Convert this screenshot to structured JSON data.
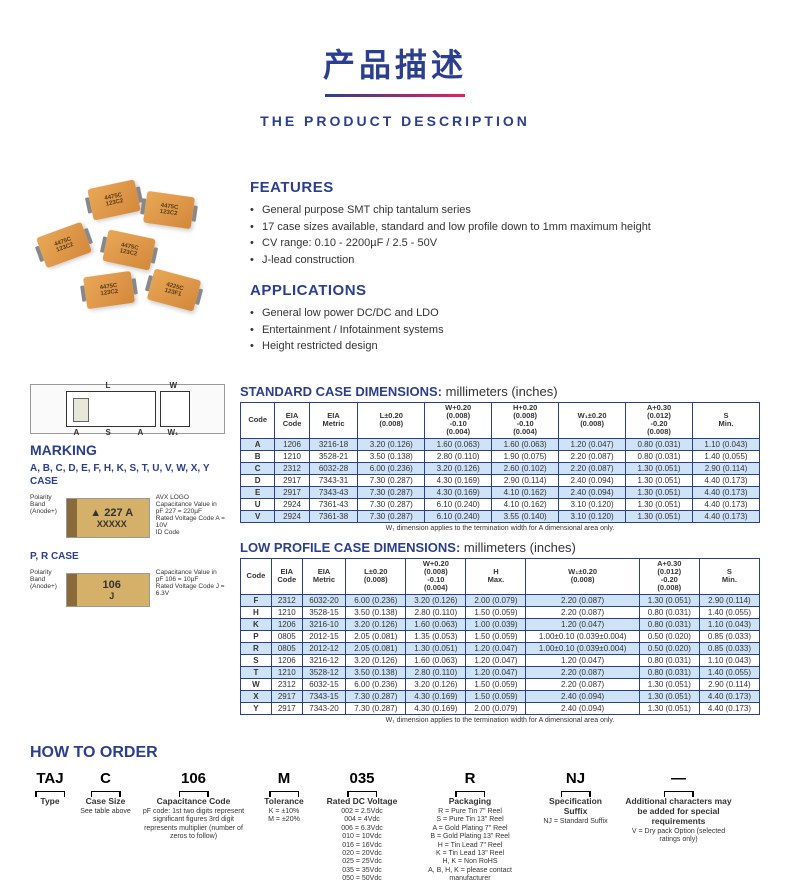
{
  "header": {
    "title_zh": "产品描述",
    "title_en": "THE PRODUCT DESCRIPTION"
  },
  "features": {
    "title": "FEATURES",
    "items": [
      "General purpose SMT chip tantalum series",
      "17 case sizes available, standard and low profile down to 1mm maximum height",
      "CV range: 0.10 - 2200µF / 2.5 - 50V",
      "J-lead construction"
    ]
  },
  "applications": {
    "title": "APPLICATIONS",
    "items": [
      "General low power DC/DC and LDO",
      "Entertainment / Infotainment systems",
      "Height restricted design"
    ]
  },
  "marking": {
    "title": "MARKING",
    "case_list": "A, B, C, D, E, F, H, K, S, T, U, V, W, X, Y CASE",
    "box1_main": "▲ 227 A",
    "box1_sub": "XXXXX",
    "note_avx": "AVX LOGO",
    "note_polarity": "Polarity Band (Anode+)",
    "note_cap1": "Capacitance Value in pF 227 = 220µF",
    "note_volt1": "Rated Voltage Code A = 10V",
    "note_id": "ID Code",
    "pr_title": "P, R CASE",
    "box2_main": "106",
    "box2_sub": "J",
    "note_cap2": "Capacitance Value in pF 106 = 10µF",
    "note_volt2": "Rated Voltage Code J = 6.3V"
  },
  "std_table": {
    "title": "STANDARD CASE DIMENSIONS:",
    "unit": "millimeters (inches)",
    "headers": [
      "Code",
      "EIA Code",
      "EIA Metric",
      "L±0.20 (0.008)",
      "W+0.20 (0.008) -0.10 (0.004)",
      "H+0.20 (0.008) -0.10 (0.004)",
      "W₁±0.20 (0.008)",
      "A+0.30 (0.012) -0.20 (0.008)",
      "S Min."
    ],
    "rows": [
      {
        "blue": true,
        "cells": [
          "A",
          "1206",
          "3216-18",
          "3.20 (0.126)",
          "1.60 (0.063)",
          "1.60 (0.063)",
          "1.20 (0.047)",
          "0.80 (0.031)",
          "1.10 (0.043)"
        ]
      },
      {
        "blue": false,
        "cells": [
          "B",
          "1210",
          "3528-21",
          "3.50 (0.138)",
          "2.80 (0.110)",
          "1.90 (0.075)",
          "2.20 (0.087)",
          "0.80 (0.031)",
          "1.40 (0.055)"
        ]
      },
      {
        "blue": true,
        "cells": [
          "C",
          "2312",
          "6032-28",
          "6.00 (0.236)",
          "3.20 (0.126)",
          "2.60 (0.102)",
          "2.20 (0.087)",
          "1.30 (0.051)",
          "2.90 (0.114)"
        ]
      },
      {
        "blue": false,
        "cells": [
          "D",
          "2917",
          "7343-31",
          "7.30 (0.287)",
          "4.30 (0.169)",
          "2.90 (0.114)",
          "2.40 (0.094)",
          "1.30 (0.051)",
          "4.40 (0.173)"
        ]
      },
      {
        "blue": true,
        "cells": [
          "E",
          "2917",
          "7343-43",
          "7.30 (0.287)",
          "4.30 (0.169)",
          "4.10 (0.162)",
          "2.40 (0.094)",
          "1.30 (0.051)",
          "4.40 (0.173)"
        ]
      },
      {
        "blue": false,
        "cells": [
          "U",
          "2924",
          "7361-43",
          "7.30 (0.287)",
          "6.10 (0.240)",
          "4.10 (0.162)",
          "3.10 (0.120)",
          "1.30 (0.051)",
          "4.40 (0.173)"
        ]
      },
      {
        "blue": true,
        "cells": [
          "V",
          "2924",
          "7361-38",
          "7.30 (0.287)",
          "6.10 (0.240)",
          "3.55 (0.140)",
          "3.10 (0.120)",
          "1.30 (0.051)",
          "4.40 (0.173)"
        ]
      }
    ],
    "note": "W₁ dimension applies to the termination width for A dimensional area only."
  },
  "low_table": {
    "title": "LOW PROFILE CASE DIMENSIONS:",
    "unit": "millimeters (inches)",
    "headers": [
      "Code",
      "EIA Code",
      "EIA Metric",
      "L±0.20 (0.008)",
      "W+0.20 (0.008) -0.10 (0.004)",
      "H Max.",
      "W₁±0.20 (0.008)",
      "A+0.30 (0.012) -0.20 (0.008)",
      "S Min."
    ],
    "rows": [
      {
        "blue": true,
        "cells": [
          "F",
          "2312",
          "6032-20",
          "6.00 (0.236)",
          "3.20 (0.126)",
          "2.00 (0.079)",
          "2.20 (0.087)",
          "1.30 (0.051)",
          "2.90 (0.114)"
        ]
      },
      {
        "blue": false,
        "cells": [
          "H",
          "1210",
          "3528-15",
          "3.50 (0.138)",
          "2.80 (0.110)",
          "1.50 (0.059)",
          "2.20 (0.087)",
          "0.80 (0.031)",
          "1.40 (0.055)"
        ]
      },
      {
        "blue": true,
        "cells": [
          "K",
          "1206",
          "3216-10",
          "3.20 (0.126)",
          "1.60 (0.063)",
          "1.00 (0.039)",
          "1.20 (0.047)",
          "0.80 (0.031)",
          "1.10 (0.043)"
        ]
      },
      {
        "blue": false,
        "cells": [
          "P",
          "0805",
          "2012-15",
          "2.05 (0.081)",
          "1.35 (0.053)",
          "1.50 (0.059)",
          "1.00±0.10 (0.039±0.004)",
          "0.50 (0.020)",
          "0.85 (0.033)"
        ]
      },
      {
        "blue": true,
        "cells": [
          "R",
          "0805",
          "2012-12",
          "2.05 (0.081)",
          "1.30 (0.051)",
          "1.20 (0.047)",
          "1.00±0.10 (0.039±0.004)",
          "0.50 (0.020)",
          "0.85 (0.033)"
        ]
      },
      {
        "blue": false,
        "cells": [
          "S",
          "1206",
          "3216-12",
          "3.20 (0.126)",
          "1.60 (0.063)",
          "1.20 (0.047)",
          "1.20 (0.047)",
          "0.80 (0.031)",
          "1.10 (0.043)"
        ]
      },
      {
        "blue": true,
        "cells": [
          "T",
          "1210",
          "3528-12",
          "3.50 (0.138)",
          "2.80 (0.110)",
          "1.20 (0.047)",
          "2.20 (0.087)",
          "0.80 (0.031)",
          "1.40 (0.055)"
        ]
      },
      {
        "blue": false,
        "cells": [
          "W",
          "2312",
          "6032-15",
          "6.00 (0.236)",
          "3.20 (0.126)",
          "1.50 (0.059)",
          "2.20 (0.087)",
          "1.30 (0.051)",
          "2.90 (0.114)"
        ]
      },
      {
        "blue": true,
        "cells": [
          "X",
          "2917",
          "7343-15",
          "7.30 (0.287)",
          "4.30 (0.169)",
          "1.50 (0.059)",
          "2.40 (0.094)",
          "1.30 (0.051)",
          "4.40 (0.173)"
        ]
      },
      {
        "blue": false,
        "cells": [
          "Y",
          "2917",
          "7343-20",
          "7.30 (0.287)",
          "4.30 (0.169)",
          "2.00 (0.079)",
          "2.40 (0.094)",
          "1.30 (0.051)",
          "4.40 (0.173)"
        ]
      }
    ],
    "note": "W₁ dimension applies to the termination width for A dimensional area only."
  },
  "order": {
    "title": "HOW TO ORDER",
    "cols": [
      {
        "code": "TAJ",
        "label": "Type",
        "desc": ""
      },
      {
        "code": "C",
        "label": "Case Size",
        "desc": "See table above"
      },
      {
        "code": "106",
        "label": "Capacitance Code",
        "desc": "pF code: 1st two digits represent significant figures 3rd digit represents multiplier (number of zeros to follow)"
      },
      {
        "code": "M",
        "label": "Tolerance",
        "desc": "K = ±10%\nM = ±20%"
      },
      {
        "code": "035",
        "label": "Rated DC Voltage",
        "desc": "002 = 2.5Vdc\n004 = 4Vdc\n006 = 6.3Vdc\n010 = 10Vdc\n016 = 16Vdc\n020 = 20Vdc\n025 = 25Vdc\n035 = 35Vdc\n050 = 50Vdc"
      },
      {
        "code": "R",
        "label": "Packaging",
        "desc": "R = Pure Tin 7\" Reel\nS = Pure Tin 13\" Reel\nA = Gold Plating 7\" Reel\nB = Gold Plating 13\" Reel\nH = Tin Lead 7\" Reel\nK = Tin Lead 13\" Reel\nH, K = Non RoHS\nA, B, H, K = please contact manufacturer"
      },
      {
        "code": "NJ",
        "label": "Specification Suffix",
        "desc": "NJ = Standard Suffix"
      },
      {
        "code": "—",
        "label": "Additional characters may be added for special requirements",
        "desc": "V = Dry pack Option (selected ratings only)"
      }
    ]
  }
}
